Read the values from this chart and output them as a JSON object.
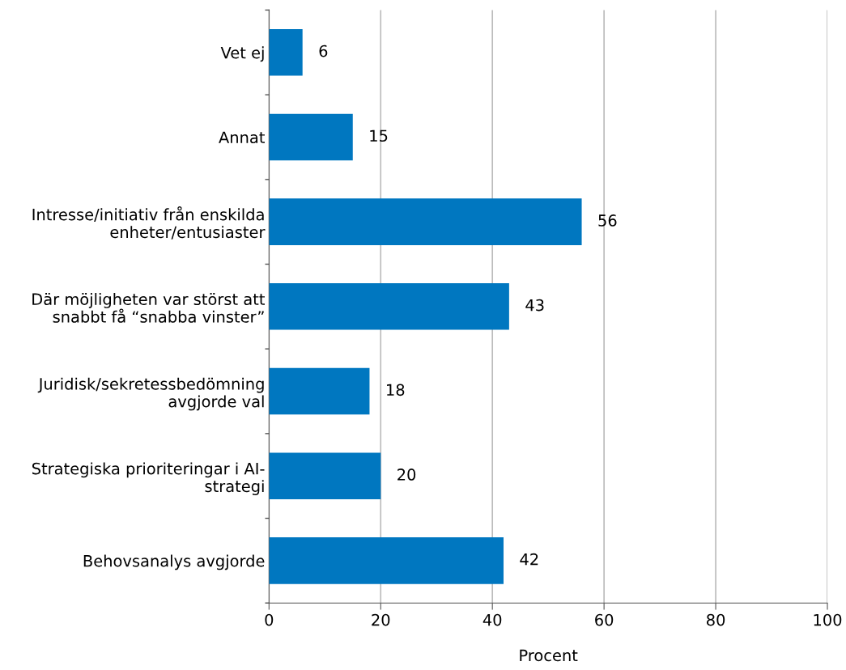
{
  "chart_data": {
    "type": "bar",
    "orientation": "horizontal",
    "xlabel": "Procent",
    "categories": [
      "Vet ej",
      "Annat",
      "Intresse/initiativ från enskilda\nenheter/entusiaster",
      "Där möjligheten var störst att\nsnabbt få “snabba vinster”",
      "Juridisk/sekretessbedömning\navgjorde val",
      "Strategiska prioriteringar i AI-\nstrategi",
      "Behovsanalys avgjorde"
    ],
    "values": [
      6,
      15,
      56,
      43,
      18,
      20,
      42
    ],
    "color": "#0077c0",
    "data_labels": true,
    "xlim": [
      0,
      100
    ],
    "xticks": [
      0,
      20,
      40,
      60,
      80,
      100
    ],
    "grid": "x",
    "legend": false
  }
}
